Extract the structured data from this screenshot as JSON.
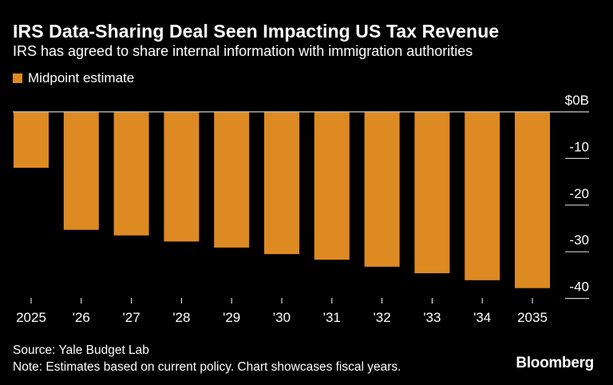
{
  "title": "IRS Data-Sharing Deal Seen Impacting US Tax Revenue",
  "subtitle": "IRS has agreed to share internal information with immigration authorities",
  "footer": {
    "source": "Source: Yale Budget Lab",
    "note": "Note: Estimates based on current policy. Chart showcases fiscal years.",
    "logo": "Bloomberg"
  },
  "colors": {
    "bar": "#DE8A23",
    "background": "#000000",
    "axis": "#FFFFFF"
  },
  "chart_data": {
    "type": "bar",
    "categories": [
      "2025",
      "'26",
      "'27",
      "'28",
      "'29",
      "'30",
      "'31",
      "'32",
      "'33",
      "'34",
      "2035"
    ],
    "series": [
      {
        "name": "Midpoint estimate",
        "values": [
          -12.0,
          -25.3,
          -26.5,
          -27.8,
          -29.1,
          -30.5,
          -31.7,
          -33.2,
          -34.6,
          -36.1,
          -37.8
        ]
      }
    ],
    "yticks": [
      0,
      -10,
      -20,
      -30,
      -40
    ],
    "ytick_labels": [
      "$0B",
      "-10",
      "-20",
      "-30",
      "-40"
    ],
    "ylim": [
      -40,
      0
    ],
    "yaxis_position": "right",
    "legend": "top-left",
    "grid": false
  }
}
